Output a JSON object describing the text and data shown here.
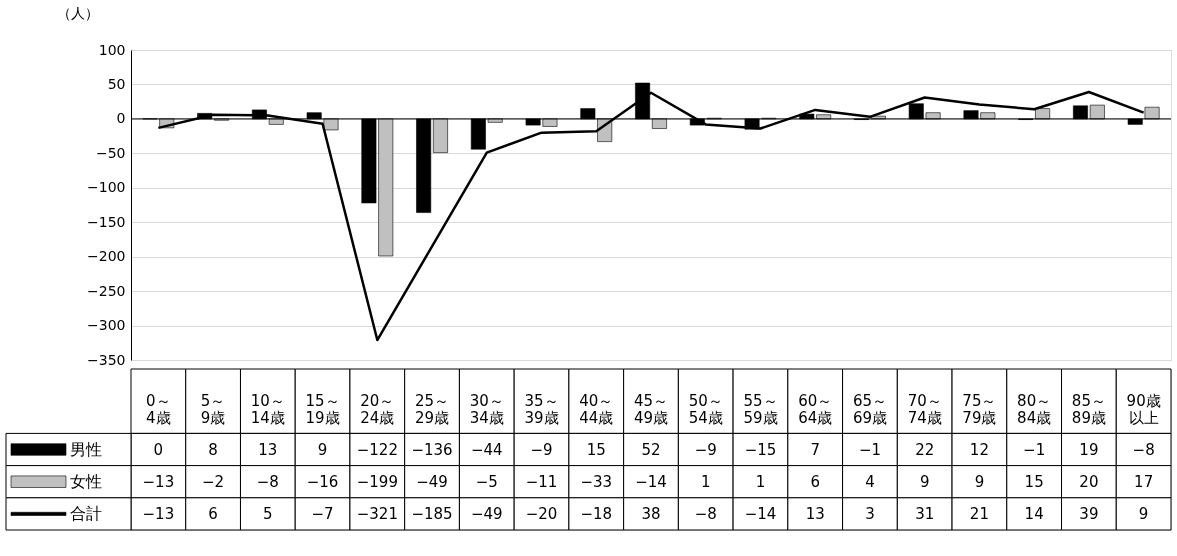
{
  "chart_data": {
    "type": "bar",
    "ylabel": "（人）",
    "categories": [
      "0～4歳",
      "5～9歳",
      "10～14歳",
      "15～19歳",
      "20～24歳",
      "25～29歳",
      "30～34歳",
      "35～39歳",
      "40～44歳",
      "45～49歳",
      "50～54歳",
      "55～59歳",
      "60～64歳",
      "65～69歳",
      "70～74歳",
      "75～79歳",
      "80～84歳",
      "85～89歳",
      "90歳以上"
    ],
    "series": [
      {
        "name": "男性",
        "color": "#000000",
        "values": [
          0,
          8,
          13,
          9,
          -122,
          -136,
          -44,
          -9,
          15,
          52,
          -9,
          -15,
          7,
          -1,
          22,
          12,
          -1,
          19,
          -8
        ]
      },
      {
        "name": "女性",
        "color": "#c0c0c0",
        "values": [
          -13,
          -2,
          -8,
          -16,
          -199,
          -49,
          -5,
          -11,
          -33,
          -14,
          1,
          1,
          6,
          4,
          9,
          9,
          15,
          20,
          17
        ]
      },
      {
        "name": "合計",
        "type": "line",
        "color": "#000000",
        "values": [
          -13,
          6,
          5,
          -7,
          -321,
          -185,
          -49,
          -20,
          -18,
          38,
          -8,
          -14,
          13,
          3,
          31,
          21,
          14,
          39,
          9
        ]
      }
    ],
    "ylim": [
      -350,
      100
    ],
    "yticks": [
      -350,
      -300,
      -250,
      -200,
      -150,
      -100,
      -50,
      0,
      50,
      100
    ],
    "grid": "y",
    "data_labels": true,
    "legend": "bottom left",
    "marker": "none",
    "line_style": "solid"
  }
}
